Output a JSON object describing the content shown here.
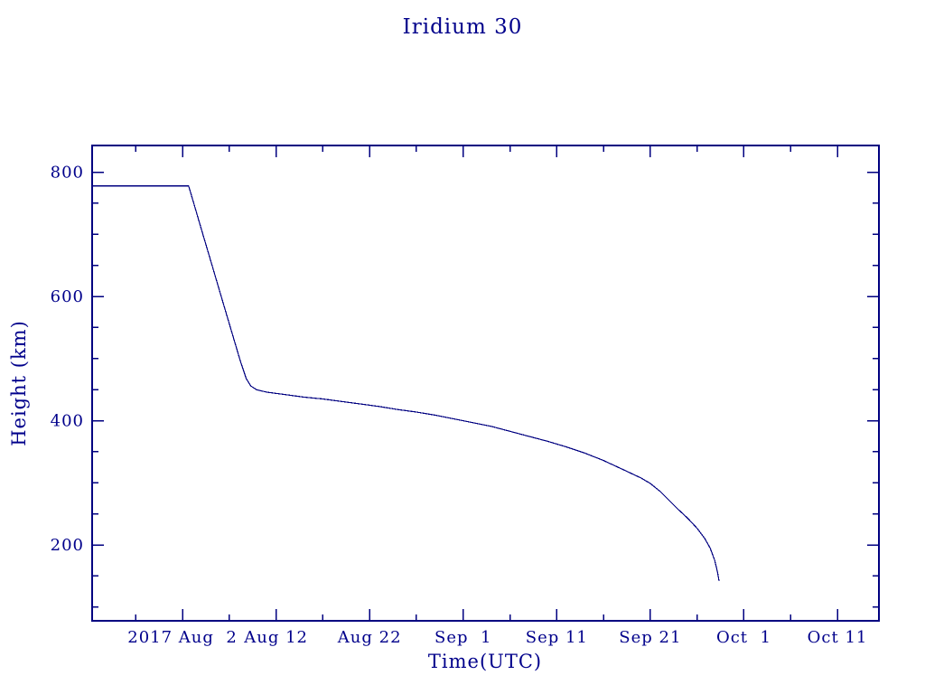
{
  "page": {
    "background": "#ffffff"
  },
  "chart_data": {
    "type": "line",
    "title": "Iridium 30",
    "xlabel": "Time(UTC)",
    "ylabel": "Height (km)",
    "legend": "none",
    "grid": "off",
    "x_axis": {
      "unit_note": "days relative to 2017 Aug 2 00:00 UTC",
      "range": [
        -9.66,
        74.44
      ],
      "major_ticks": [
        {
          "day": 0,
          "label": "2017 Aug  2"
        },
        {
          "day": 10,
          "label": "Aug 12"
        },
        {
          "day": 20,
          "label": "Aug 22"
        },
        {
          "day": 30,
          "label": "Sep  1"
        },
        {
          "day": 40,
          "label": "Sep 11"
        },
        {
          "day": 50,
          "label": "Sep 21"
        },
        {
          "day": 60,
          "label": "Oct  1"
        },
        {
          "day": 70,
          "label": "Oct 11"
        }
      ],
      "minor_tick_days": [
        -5,
        5,
        15,
        25,
        35,
        45,
        55,
        65
      ]
    },
    "y_axis": {
      "range": [
        78,
        843
      ],
      "major_ticks": [
        {
          "value": 200,
          "label": "200"
        },
        {
          "value": 400,
          "label": "400"
        },
        {
          "value": 600,
          "label": "600"
        },
        {
          "value": 800,
          "label": "800"
        }
      ],
      "minor_tick_values": [
        100,
        150,
        250,
        300,
        350,
        450,
        500,
        550,
        650,
        700,
        750
      ]
    },
    "series": [
      {
        "name": "Iridium 30 height",
        "points_day_km": [
          [
            -9.66,
            778
          ],
          [
            0.65,
            778
          ],
          [
            1.2,
            750
          ],
          [
            2.2,
            699
          ],
          [
            3.2,
            648
          ],
          [
            4.2,
            597
          ],
          [
            5.2,
            546
          ],
          [
            6.2,
            495
          ],
          [
            6.8,
            468
          ],
          [
            7.3,
            456
          ],
          [
            7.9,
            450
          ],
          [
            9,
            446
          ],
          [
            11,
            442
          ],
          [
            13,
            438
          ],
          [
            15,
            435
          ],
          [
            17,
            431
          ],
          [
            19,
            427
          ],
          [
            21,
            423
          ],
          [
            23,
            418
          ],
          [
            25,
            414
          ],
          [
            27,
            409
          ],
          [
            29,
            403
          ],
          [
            31,
            397
          ],
          [
            33,
            391
          ],
          [
            35,
            383
          ],
          [
            37,
            375
          ],
          [
            39,
            367
          ],
          [
            41,
            358
          ],
          [
            43,
            348
          ],
          [
            45,
            336
          ],
          [
            47,
            322
          ],
          [
            49,
            308
          ],
          [
            50,
            299
          ],
          [
            51,
            287
          ],
          [
            52,
            272
          ],
          [
            53,
            257
          ],
          [
            54,
            243
          ],
          [
            55,
            227
          ],
          [
            55.8,
            211
          ],
          [
            56.4,
            195
          ],
          [
            56.9,
            175
          ],
          [
            57.2,
            155
          ],
          [
            57.35,
            142
          ]
        ]
      }
    ],
    "colors": {
      "line": "#000080",
      "axis": "#000080",
      "text": "#00008B",
      "background": "#ffffff"
    }
  }
}
